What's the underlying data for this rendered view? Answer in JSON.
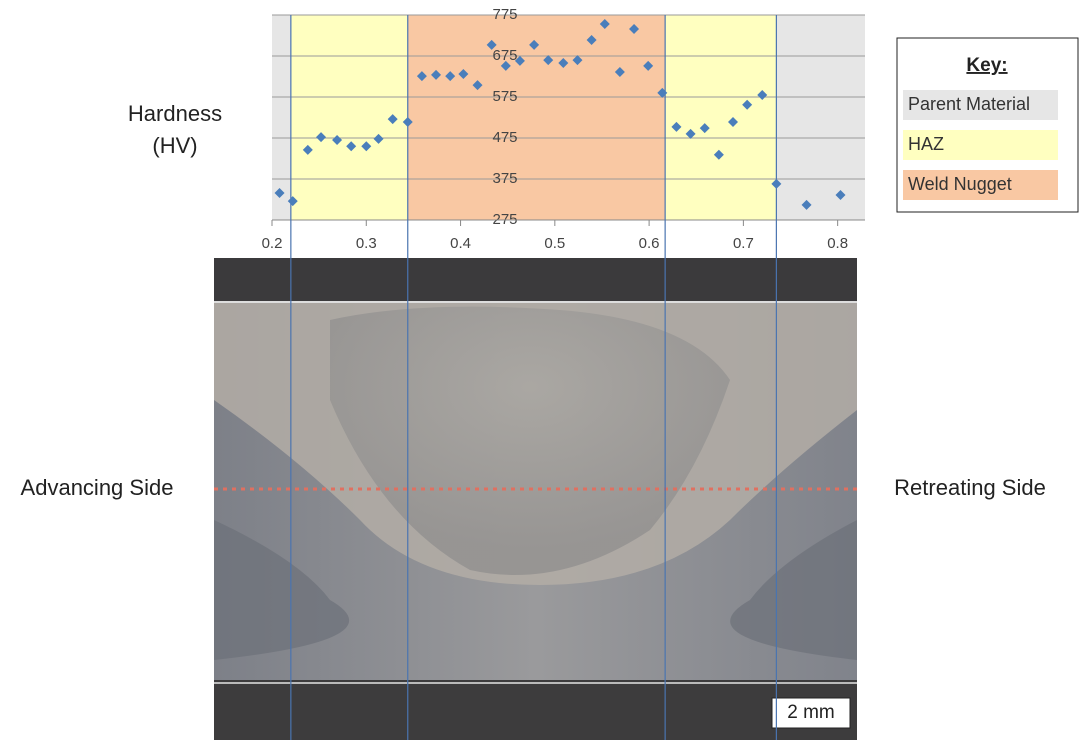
{
  "chart_data": {
    "type": "scatter",
    "ylabel": [
      "Hardness",
      "(HV)"
    ],
    "x": [
      0.208,
      0.222,
      0.238,
      0.252,
      0.269,
      0.284,
      0.3,
      0.313,
      0.328,
      0.344,
      0.359,
      0.374,
      0.389,
      0.403,
      0.418,
      0.433,
      0.448,
      0.463,
      0.478,
      0.493,
      0.509,
      0.524,
      0.539,
      0.553,
      0.569,
      0.584,
      0.599,
      0.614,
      0.629,
      0.644,
      0.659,
      0.674,
      0.689,
      0.704,
      0.72,
      0.735,
      0.767,
      0.803
    ],
    "series": [
      {
        "color": "#4a7ebb",
        "values": [
          341,
          321,
          446,
          477,
          470,
          455,
          455,
          473,
          521,
          514,
          626,
          629,
          626,
          631,
          604,
          702,
          651,
          663,
          702,
          665,
          658,
          665,
          714,
          753,
          636,
          741,
          651,
          585,
          502,
          485,
          499,
          434,
          514,
          556,
          580,
          363,
          312,
          336
        ]
      }
    ],
    "xlim": [
      0.2,
      0.829
    ],
    "xticks": [
      0.2,
      0.3,
      0.4,
      0.5,
      0.6,
      0.7,
      0.8
    ],
    "ylim": [
      275,
      775
    ],
    "yticks": [
      275,
      375,
      475,
      575,
      675,
      775
    ],
    "grid": true,
    "key": {
      "title": "Key:",
      "items": [
        {
          "name": "Parent Material",
          "color": "#e6e6e6"
        },
        {
          "name": "HAZ",
          "color": "#ffffc0"
        },
        {
          "name": "Weld Nugget",
          "color": "#f9c8a3"
        }
      ]
    },
    "regions": [
      {
        "item": 0,
        "from": 0.2,
        "to": 0.22
      },
      {
        "item": 1,
        "from": 0.22,
        "to": 0.344
      },
      {
        "item": 2,
        "from": 0.344,
        "to": 0.617
      },
      {
        "item": 1,
        "from": 0.617,
        "to": 0.735
      },
      {
        "item": 0,
        "from": 0.735,
        "to": 0.829
      }
    ]
  },
  "photo": {
    "left_label": "Advancing Side",
    "right_label": "Retreating Side",
    "scale_bar": "2 mm"
  }
}
